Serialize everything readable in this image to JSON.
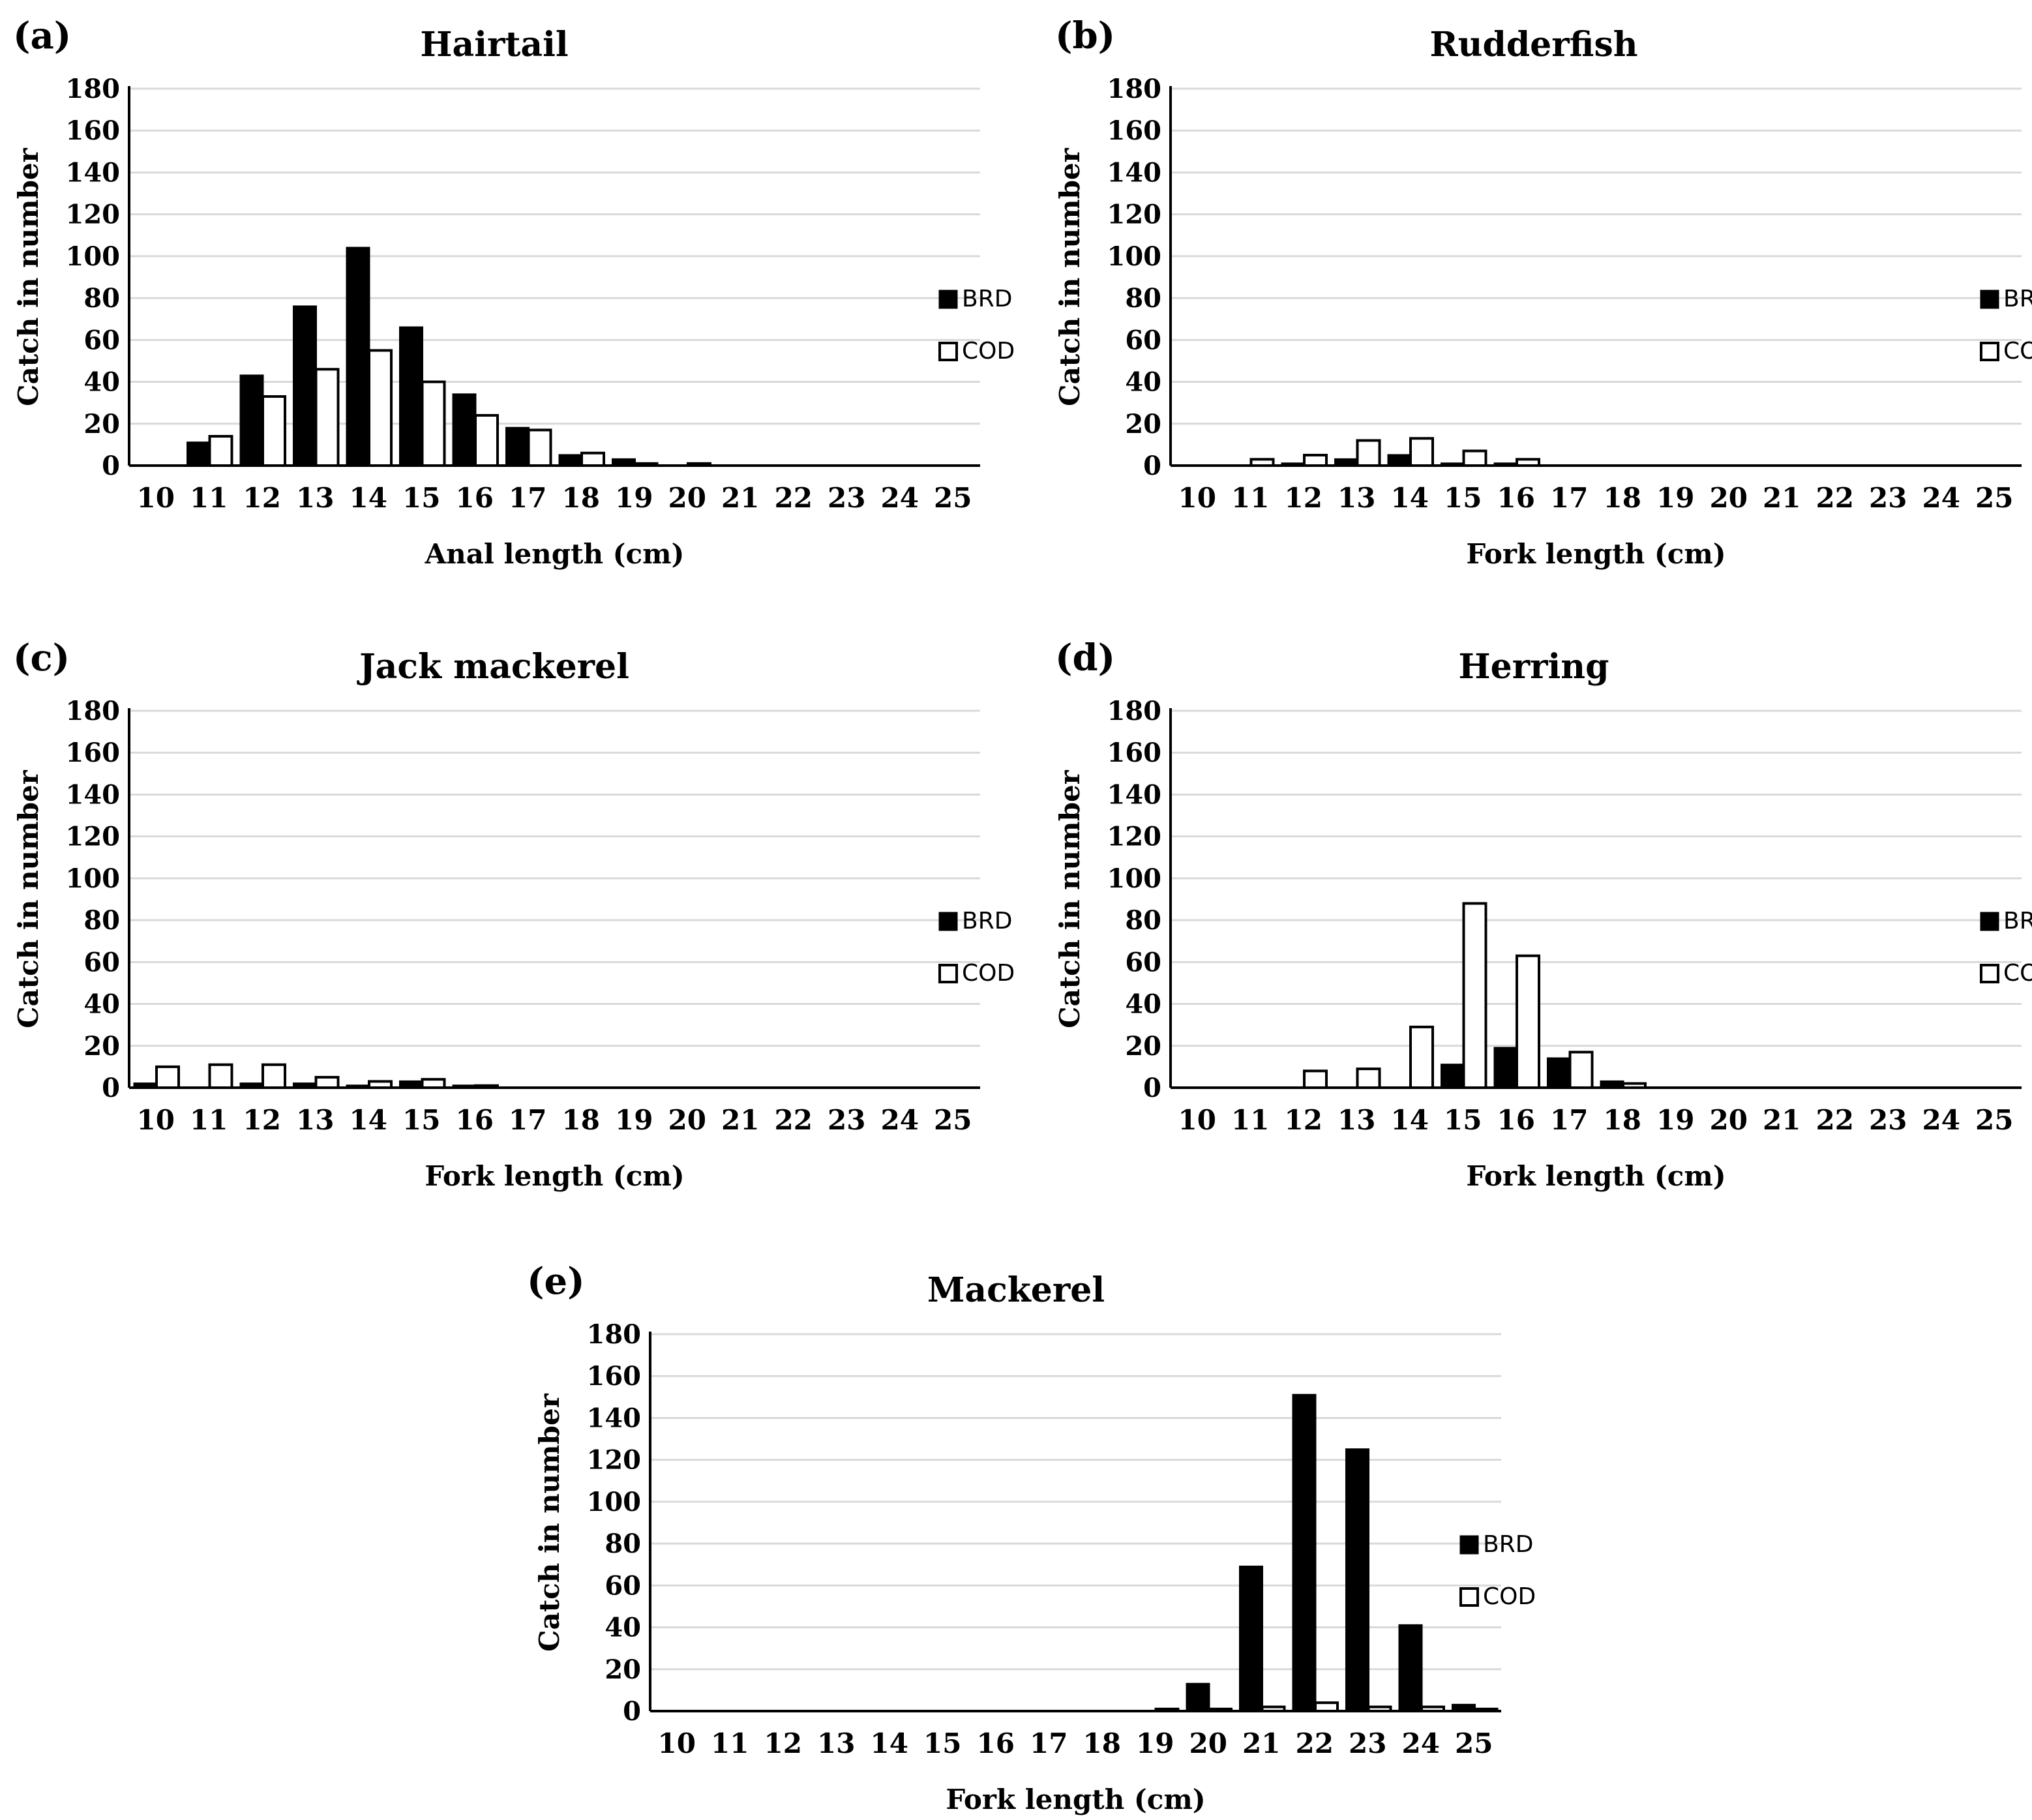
{
  "chart_data": [
    {
      "type": "bar",
      "panel": "(a)",
      "title": "Hairtail",
      "xlabel": "Anal length (cm)",
      "ylabel": "Catch in number",
      "ylim": [
        0,
        180
      ],
      "yticks": [
        "0",
        "20",
        "40",
        "60",
        "80",
        "100",
        "120",
        "140",
        "160",
        "180"
      ],
      "categories": [
        "10",
        "11",
        "12",
        "13",
        "14",
        "15",
        "16",
        "17",
        "18",
        "19",
        "20",
        "21",
        "22",
        "23",
        "24",
        "25"
      ],
      "grid": true,
      "legend_position": "right",
      "series": [
        {
          "name": "BRD",
          "values": [
            0,
            11,
            43,
            76,
            104,
            66,
            34,
            18,
            5,
            3,
            0,
            0,
            0,
            0,
            0,
            0
          ]
        },
        {
          "name": "COD",
          "values": [
            0,
            14,
            33,
            46,
            55,
            40,
            24,
            17,
            6,
            1,
            1,
            0,
            0,
            0,
            0,
            0
          ]
        }
      ]
    },
    {
      "type": "bar",
      "panel": "(b)",
      "title": "Rudderfish",
      "xlabel": "Fork length (cm)",
      "ylabel": "Catch in number",
      "ylim": [
        0,
        180
      ],
      "yticks": [
        "0",
        "20",
        "40",
        "60",
        "80",
        "100",
        "120",
        "140",
        "160",
        "180"
      ],
      "categories": [
        "10",
        "11",
        "12",
        "13",
        "14",
        "15",
        "16",
        "17",
        "18",
        "19",
        "20",
        "21",
        "22",
        "23",
        "24",
        "25"
      ],
      "grid": true,
      "legend_position": "right",
      "series": [
        {
          "name": "BRD",
          "values": [
            0,
            0,
            1,
            3,
            5,
            1,
            1,
            0,
            0,
            0,
            0,
            0,
            0,
            0,
            0,
            0
          ]
        },
        {
          "name": "COD",
          "values": [
            0,
            3,
            5,
            12,
            13,
            7,
            3,
            0,
            0,
            0,
            0,
            0,
            0,
            0,
            0,
            0
          ]
        }
      ]
    },
    {
      "type": "bar",
      "panel": "(c)",
      "title": "Jack mackerel",
      "xlabel": "Fork length (cm)",
      "ylabel": "Catch in number",
      "ylim": [
        0,
        180
      ],
      "yticks": [
        "0",
        "20",
        "40",
        "60",
        "80",
        "100",
        "120",
        "140",
        "160",
        "180"
      ],
      "categories": [
        "10",
        "11",
        "12",
        "13",
        "14",
        "15",
        "16",
        "17",
        "18",
        "19",
        "20",
        "21",
        "22",
        "23",
        "24",
        "25"
      ],
      "grid": true,
      "legend_position": "right",
      "series": [
        {
          "name": "BRD",
          "values": [
            2,
            0,
            2,
            2,
            1,
            3,
            1,
            0,
            0,
            0,
            0,
            0,
            0,
            0,
            0,
            0
          ]
        },
        {
          "name": "COD",
          "values": [
            10,
            11,
            11,
            5,
            3,
            4,
            1,
            0,
            0,
            0,
            0,
            0,
            0,
            0,
            0,
            0
          ]
        }
      ]
    },
    {
      "type": "bar",
      "panel": "(d)",
      "title": "Herring",
      "xlabel": "Fork length (cm)",
      "ylabel": "Catch in number",
      "ylim": [
        0,
        180
      ],
      "yticks": [
        "0",
        "20",
        "40",
        "60",
        "80",
        "100",
        "120",
        "140",
        "160",
        "180"
      ],
      "categories": [
        "10",
        "11",
        "12",
        "13",
        "14",
        "15",
        "16",
        "17",
        "18",
        "19",
        "20",
        "21",
        "22",
        "23",
        "24",
        "25"
      ],
      "grid": true,
      "legend_position": "right",
      "series": [
        {
          "name": "BRD",
          "values": [
            0,
            0,
            0,
            0,
            0,
            11,
            19,
            14,
            3,
            0,
            0,
            0,
            0,
            0,
            0,
            0
          ]
        },
        {
          "name": "COD",
          "values": [
            0,
            0,
            8,
            9,
            29,
            88,
            63,
            17,
            2,
            0,
            0,
            0,
            0,
            0,
            0,
            0
          ]
        }
      ]
    },
    {
      "type": "bar",
      "panel": "(e)",
      "title": "Mackerel",
      "xlabel": "Fork length (cm)",
      "ylabel": "Catch in number",
      "ylim": [
        0,
        180
      ],
      "yticks": [
        "0",
        "20",
        "40",
        "60",
        "80",
        "100",
        "120",
        "140",
        "160",
        "180"
      ],
      "categories": [
        "10",
        "11",
        "12",
        "13",
        "14",
        "15",
        "16",
        "17",
        "18",
        "19",
        "20",
        "21",
        "22",
        "23",
        "24",
        "25"
      ],
      "grid": true,
      "legend_position": "right",
      "series": [
        {
          "name": "BRD",
          "values": [
            0,
            0,
            0,
            0,
            0,
            0,
            0,
            0,
            0,
            0,
            13,
            69,
            151,
            125,
            41,
            3
          ]
        },
        {
          "name": "COD",
          "values": [
            0,
            0,
            0,
            0,
            0,
            0,
            0,
            0,
            0,
            1,
            1,
            2,
            4,
            2,
            2,
            1
          ]
        }
      ]
    }
  ],
  "colors": {
    "brd_fill": "#000000",
    "cod_fill": "#ffffff",
    "bar_stroke": "#000000",
    "gridline": "#d9d9d9",
    "axis": "#000000"
  }
}
